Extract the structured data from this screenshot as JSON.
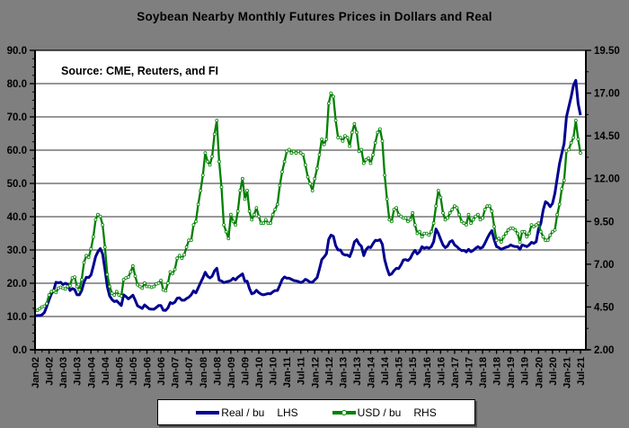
{
  "title": "Soybean Nearby Monthly Futures Prices in Dollars and Real",
  "source_note": "Source: CME, Reuters, and FI",
  "colors": {
    "background": "#7f7f7f",
    "plot_background": "#ffffff",
    "gridline": "#595959",
    "axis": "#000000",
    "real_series": "#000090",
    "usd_series": "#008000",
    "usd_marker_fill": "#ffffff"
  },
  "legend": {
    "items": [
      {
        "label": "Real / bu",
        "side": "LHS"
      },
      {
        "label": "USD / bu",
        "side": "RHS"
      }
    ]
  },
  "chart_data": {
    "type": "line",
    "title": "Soybean Nearby Monthly Futures Prices in Dollars and Real",
    "x_start": "Jan-02",
    "x_end": "Jul-21",
    "x_frequency": "monthly",
    "x_tick_labels": [
      "Jan-02",
      "Jul-02",
      "Jan-03",
      "Jul-03",
      "Jan-04",
      "Jul-04",
      "Jan-05",
      "Jul-05",
      "Jan-06",
      "Jul-06",
      "Jan-07",
      "Jul-07",
      "Jan-08",
      "Jul-08",
      "Jan-09",
      "Jul-09",
      "Jan-10",
      "Jul-10",
      "Jan-11",
      "Jul-11",
      "Jan-12",
      "Jul-12",
      "Jan-13",
      "Jul-13",
      "Jan-14",
      "Jul-14",
      "Jan-15",
      "Jul-15",
      "Jan-16",
      "Jul-16",
      "Jan-17",
      "Jul-17",
      "Jan-18",
      "Jul-18",
      "Jan-19",
      "Jul-19",
      "Jan-20",
      "Jul-20",
      "Jan-21",
      "Jul-21"
    ],
    "left_axis": {
      "min": 0,
      "max": 90,
      "major_step": 10,
      "minor_step": 2.5,
      "tick_labels": [
        "0.0",
        "10.0",
        "20.0",
        "30.0",
        "40.0",
        "50.0",
        "60.0",
        "70.0",
        "80.0",
        "90.0"
      ]
    },
    "right_axis": {
      "min": 2,
      "max": 19.5,
      "major_step": 2.5,
      "minor_step": 1.25,
      "tick_labels": [
        "2.00",
        "4.50",
        "7.00",
        "9.50",
        "12.00",
        "14.50",
        "17.00",
        "19.50"
      ]
    },
    "grid": "horizontal-major",
    "legend_position": "bottom",
    "series": [
      {
        "name": "Real / bu",
        "axis": "LHS",
        "color": "#000090",
        "marker": false,
        "values": [
          10.2,
          10.3,
          10.3,
          10.5,
          11.2,
          13.0,
          15.0,
          16.8,
          17.9,
          20.3,
          20.1,
          20.3,
          19.6,
          20.0,
          19.7,
          17.8,
          18.4,
          18.1,
          16.5,
          16.5,
          17.8,
          20.3,
          21.8,
          21.7,
          22.5,
          25.2,
          28.0,
          29.5,
          30.4,
          28.8,
          24.2,
          19.0,
          16.2,
          15.1,
          14.5,
          14.7,
          14.0,
          13.3,
          16.5,
          16.0,
          15.3,
          15.8,
          16.4,
          14.9,
          13.2,
          12.8,
          12.4,
          13.5,
          12.9,
          12.3,
          12.2,
          12.2,
          12.7,
          13.3,
          13.3,
          11.9,
          11.8,
          12.6,
          14.2,
          13.9,
          14.3,
          15.5,
          15.6,
          14.9,
          14.9,
          15.4,
          15.8,
          16.5,
          17.7,
          17.1,
          18.6,
          20.2,
          21.6,
          23.3,
          22.1,
          21.6,
          22.1,
          23.7,
          24.5,
          20.9,
          20.7,
          20.2,
          20.4,
          20.6,
          20.8,
          21.5,
          21.0,
          21.8,
          22.3,
          22.8,
          20.6,
          20.6,
          18.4,
          16.8,
          17.1,
          17.9,
          17.2,
          16.7,
          16.5,
          16.7,
          16.9,
          16.8,
          17.4,
          17.8,
          17.8,
          19.4,
          21.1,
          21.9,
          21.5,
          21.5,
          21.2,
          20.8,
          20.7,
          20.5,
          20.2,
          20.5,
          21.2,
          20.8,
          20.3,
          20.3,
          21.0,
          21.7,
          24.3,
          27.1,
          27.9,
          28.9,
          33.2,
          34.5,
          34.1,
          31.3,
          30.0,
          30.0,
          28.8,
          28.5,
          28.5,
          28.0,
          29.8,
          32.4,
          33.1,
          31.8,
          31.1,
          28.3,
          30.1,
          30.9,
          30.7,
          31.9,
          32.9,
          32.8,
          33.1,
          31.7,
          27.1,
          24.5,
          22.5,
          22.8,
          23.8,
          24.5,
          24.4,
          25.5,
          27.0,
          27.1,
          26.8,
          27.5,
          28.9,
          29.9,
          28.8,
          29.5,
          31.0,
          30.5,
          30.8,
          30.5,
          31.0,
          32.5,
          36.3,
          35.0,
          33.2,
          31.5,
          30.7,
          31.2,
          32.5,
          32.8,
          31.5,
          31.0,
          30.3,
          29.8,
          29.9,
          29.4,
          30.2,
          29.5,
          29.9,
          30.5,
          31.0,
          30.5,
          30.8,
          32.0,
          33.5,
          34.8,
          35.8,
          33.0,
          31.0,
          30.7,
          30.2,
          30.5,
          30.8,
          31.0,
          31.5,
          31.2,
          31.0,
          31.0,
          30.2,
          31.5,
          31.3,
          31.0,
          31.5,
          32.3,
          32.0,
          32.5,
          36.3,
          38.0,
          42.0,
          44.5,
          44.0,
          43.0,
          44.0,
          47.0,
          51.5,
          56.0,
          59.0,
          62.0,
          70.0,
          73.0,
          76.0,
          79.5,
          81.0,
          74.0,
          70.5
        ]
      },
      {
        "name": "USD / bu",
        "axis": "RHS",
        "color": "#008000",
        "marker": true,
        "values": [
          4.3,
          4.3,
          4.4,
          4.5,
          4.55,
          4.7,
          5.2,
          5.4,
          5.45,
          5.35,
          5.6,
          5.65,
          5.6,
          5.55,
          5.7,
          5.75,
          6.2,
          6.25,
          5.7,
          5.5,
          6.1,
          7.1,
          7.5,
          7.4,
          7.9,
          8.6,
          9.6,
          9.9,
          9.8,
          9.3,
          8.0,
          6.4,
          5.7,
          5.3,
          5.2,
          5.4,
          5.2,
          5.15,
          6.1,
          6.2,
          6.25,
          6.55,
          6.9,
          6.3,
          5.8,
          5.7,
          5.6,
          5.9,
          5.7,
          5.7,
          5.65,
          5.7,
          5.85,
          5.9,
          6.05,
          5.5,
          5.45,
          5.9,
          6.55,
          6.45,
          6.7,
          7.35,
          7.5,
          7.35,
          7.55,
          8.0,
          8.4,
          8.4,
          9.3,
          9.5,
          10.5,
          11.3,
          12.2,
          13.5,
          13.0,
          12.8,
          13.3,
          14.6,
          15.4,
          13.0,
          11.5,
          9.3,
          8.9,
          8.5,
          9.9,
          9.5,
          9.3,
          10.1,
          11.3,
          12.0,
          10.8,
          11.3,
          10.1,
          9.6,
          9.9,
          10.3,
          9.8,
          9.4,
          9.4,
          9.6,
          9.4,
          9.4,
          9.9,
          10.2,
          10.5,
          11.6,
          12.4,
          13.0,
          13.6,
          13.7,
          13.5,
          13.6,
          13.5,
          13.6,
          13.5,
          13.4,
          12.8,
          12.1,
          11.7,
          11.3,
          12.0,
          12.6,
          13.4,
          14.3,
          14.0,
          14.3,
          16.4,
          17.0,
          16.8,
          15.4,
          14.4,
          14.4,
          14.2,
          14.5,
          14.4,
          13.9,
          14.7,
          15.2,
          14.7,
          13.6,
          13.7,
          12.9,
          13.1,
          13.2,
          12.9,
          13.4,
          14.1,
          14.7,
          14.9,
          14.2,
          12.2,
          10.8,
          9.6,
          9.5,
          10.2,
          10.3,
          9.9,
          9.8,
          9.7,
          9.7,
          9.5,
          9.6,
          10.0,
          9.3,
          8.8,
          8.9,
          8.6,
          8.8,
          8.8,
          8.7,
          8.9,
          9.4,
          10.4,
          11.3,
          10.9,
          10.0,
          9.6,
          9.7,
          10.0,
          10.2,
          10.4,
          10.3,
          9.9,
          9.5,
          9.4,
          9.3,
          9.9,
          9.4,
          9.6,
          9.8,
          9.9,
          9.6,
          9.7,
          10.2,
          10.4,
          10.4,
          10.1,
          9.2,
          8.4,
          8.5,
          8.3,
          8.6,
          8.8,
          9.0,
          9.1,
          9.1,
          9.0,
          8.8,
          8.3,
          8.9,
          8.9,
          8.6,
          8.8,
          9.3,
          9.2,
          9.3,
          9.4,
          8.9,
          8.6,
          8.4,
          8.4,
          8.7,
          8.9,
          9.0,
          9.9,
          10.5,
          11.4,
          11.9,
          13.6,
          13.7,
          14.1,
          14.4,
          15.4,
          14.3,
          13.5
        ]
      }
    ]
  }
}
